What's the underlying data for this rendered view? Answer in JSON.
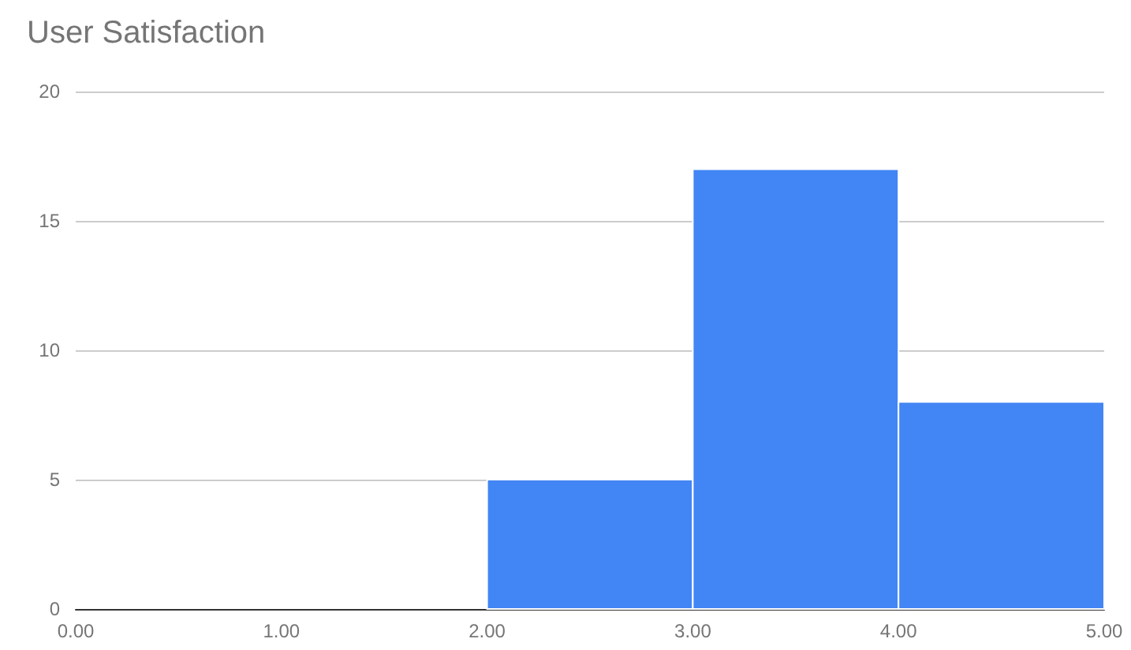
{
  "chart_data": {
    "type": "histogram",
    "title": "User Satisfaction",
    "bins": [
      0,
      1,
      2,
      3,
      4,
      5
    ],
    "values": [
      0,
      0,
      5,
      17,
      8
    ],
    "color": "#4285f4",
    "xlim": [
      0,
      5
    ],
    "xticks": [
      {
        "value": 0,
        "label": "0.00"
      },
      {
        "value": 1,
        "label": "1.00"
      },
      {
        "value": 2,
        "label": "2.00"
      },
      {
        "value": 3,
        "label": "3.00"
      },
      {
        "value": 4,
        "label": "4.00"
      },
      {
        "value": 5,
        "label": "5.00"
      }
    ],
    "ylim": [
      0,
      20
    ],
    "yticks": [
      0,
      5,
      10,
      15,
      20
    ],
    "grid": "y"
  }
}
